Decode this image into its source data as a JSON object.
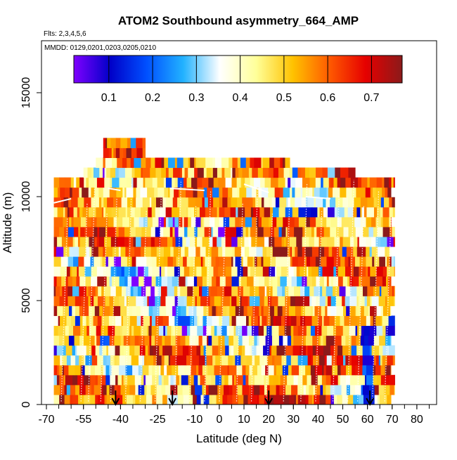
{
  "chart_data": {
    "type": "heatmap",
    "title": "ATOM2 Southbound asymmetry_664_AMP",
    "subtitle_flights": "Flts: 2,3,4,5,6",
    "subtitle_dates": "MMDD: 0129,0201,0203,0205,0210",
    "xlabel": "Latitude (deg N)",
    "ylabel": "Altitude (m)",
    "xlim": [
      -72,
      88
    ],
    "ylim": [
      0,
      17500
    ],
    "x_ticks": [
      -70,
      -55,
      -40,
      -25,
      -10,
      0,
      10,
      20,
      30,
      40,
      50,
      60,
      70,
      80
    ],
    "x_tick_labels": [
      "-70",
      "-55",
      "-40",
      "-25",
      "-10",
      "0",
      "10",
      "20",
      "30",
      "40",
      "50",
      "60",
      "70",
      "80"
    ],
    "y_ticks": [
      0,
      5000,
      10000,
      15000
    ],
    "y_tick_labels": [
      "0",
      "5000",
      "10000",
      "15000"
    ],
    "colorbar": {
      "range": [
        0.02,
        0.77
      ],
      "colors": [
        "#7f00ff",
        "#0000c8",
        "#0050ff",
        "#22b2ff",
        "#ffffff",
        "#ffff99",
        "#ffc200",
        "#ff5a00",
        "#e60000",
        "#8b1a1a"
      ],
      "ticks": [
        0.1,
        0.2,
        0.3,
        0.4,
        0.5,
        0.6,
        0.7
      ],
      "tick_labels": [
        "0.1",
        "0.2",
        "0.3",
        "0.4",
        "0.5",
        "0.6",
        "0.7"
      ]
    },
    "profile_latitudes": [
      -42,
      -19,
      20,
      61
    ],
    "data_extent": {
      "lat_range": [
        -67,
        71
      ],
      "alt_range": [
        0,
        12500
      ]
    }
  }
}
